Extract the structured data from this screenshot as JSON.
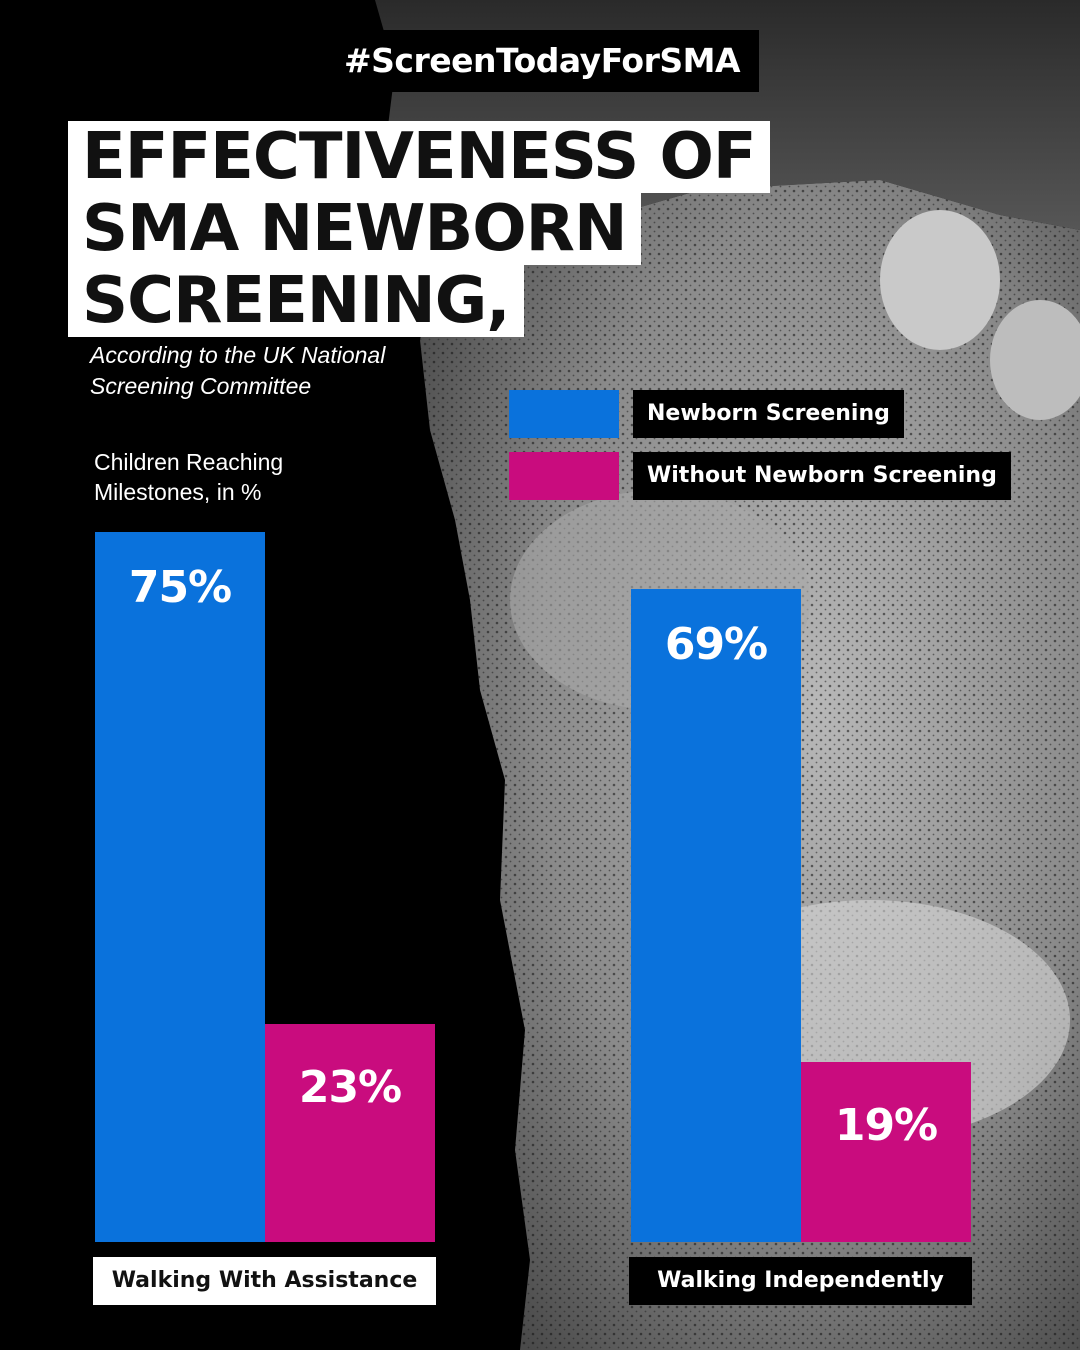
{
  "hashtag": "#ScreenTodayForSMA",
  "title_lines": [
    "EFFECTIVENESS OF",
    "SMA NEWBORN",
    "SCREENING,"
  ],
  "subtitle": "According to the UK National Screening Committee",
  "colors": {
    "newborn": "#0A72DC",
    "without": "#C90C7E",
    "background": "#000000",
    "photo": "#7d7d7d"
  },
  "chart_data": {
    "type": "bar",
    "ylabel": "Children Reaching Milestones, in %",
    "ylim": [
      0,
      100
    ],
    "grid": false,
    "legend": "top-right",
    "categories": [
      "Walking With Assistance",
      "Walking Independently"
    ],
    "series": [
      {
        "name": "Newborn Screening",
        "values": [
          75,
          69
        ],
        "labels": [
          "75%",
          "69%"
        ]
      },
      {
        "name": "Without Newborn Screening",
        "values": [
          23,
          19
        ],
        "labels": [
          "23%",
          "19%"
        ]
      }
    ]
  }
}
